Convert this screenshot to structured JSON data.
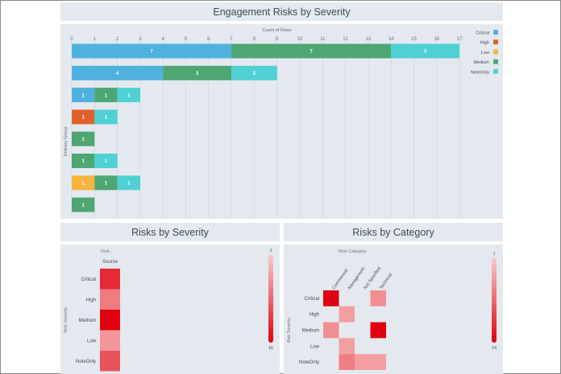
{
  "titles": {
    "engagement": "Engagement Risks by Severity",
    "severity": "Risks by Severity",
    "category": "Risks by Category"
  },
  "colors": {
    "Critical": "#4fb1dd",
    "High": "#e0602a",
    "Low": "#f7b53f",
    "Medium": "#4ea673",
    "NoteOnly": "#4fd1d4"
  },
  "chart_data": [
    {
      "type": "bar",
      "orientation": "horizontal",
      "stacked": true,
      "title": "Engagement Risks by Severity",
      "xlabel": "Count of Rows",
      "ylabel": "Delivery Group",
      "xlim": [
        0,
        17
      ],
      "xticks": [
        0,
        1,
        2,
        3,
        4,
        5,
        6,
        7,
        8,
        9,
        10,
        11,
        12,
        13,
        14,
        15,
        16,
        17
      ],
      "grid": true,
      "legend_position": "top-right",
      "legend": [
        "Critical",
        "High",
        "Low",
        "Medium",
        "NoteOnly"
      ],
      "rows": [
        [
          {
            "s": "Critical",
            "v": 7
          },
          {
            "s": "Medium",
            "v": 7
          },
          {
            "s": "NoteOnly",
            "v": 3
          }
        ],
        [
          {
            "s": "Critical",
            "v": 4
          },
          {
            "s": "Medium",
            "v": 3
          },
          {
            "s": "NoteOnly",
            "v": 2
          }
        ],
        [
          {
            "s": "Critical",
            "v": 1
          },
          {
            "s": "Medium",
            "v": 1
          },
          {
            "s": "NoteOnly",
            "v": 1
          }
        ],
        [
          {
            "s": "High",
            "v": 1
          },
          {
            "s": "NoteOnly",
            "v": 1
          }
        ],
        [
          {
            "s": "Medium",
            "v": 1
          }
        ],
        [
          {
            "s": "Medium",
            "v": 1
          },
          {
            "s": "NoteOnly",
            "v": 1
          }
        ],
        [
          {
            "s": "Low",
            "v": 1
          },
          {
            "s": "Medium",
            "v": 1
          },
          {
            "s": "NoteOnly",
            "v": 1
          }
        ],
        [
          {
            "s": "Medium",
            "v": 1
          }
        ]
      ]
    },
    {
      "type": "heatmap",
      "title": "Risks by Severity",
      "column_header": "Risk...",
      "columns": [
        "Source"
      ],
      "ylabel": "Risk Severity",
      "rows": [
        "Critical",
        "High",
        "Medium",
        "Low",
        "NoteOnly"
      ],
      "values": [
        [
          13
        ],
        [
          7
        ],
        [
          16
        ],
        [
          5
        ],
        [
          10
        ]
      ],
      "scale": {
        "min": 1,
        "max": 16,
        "min_label": "1",
        "max_label": "16"
      }
    },
    {
      "type": "heatmap",
      "title": "Risks by Category",
      "column_header": "Risk Category",
      "columns": [
        "Commercial",
        "Management",
        "Not Specified",
        "Technical"
      ],
      "ylabel": "Risk Severity",
      "rows": [
        "Critical",
        "High",
        "Medium",
        "Low",
        "NoteOnly"
      ],
      "values": [
        [
          14,
          null,
          null,
          5
        ],
        [
          null,
          4,
          null,
          null
        ],
        [
          5,
          null,
          null,
          14
        ],
        [
          null,
          4,
          null,
          null
        ],
        [
          null,
          6,
          4,
          4
        ]
      ],
      "scale": {
        "min": 1,
        "max": 14,
        "min_label": "1",
        "max_label": "14"
      }
    }
  ]
}
